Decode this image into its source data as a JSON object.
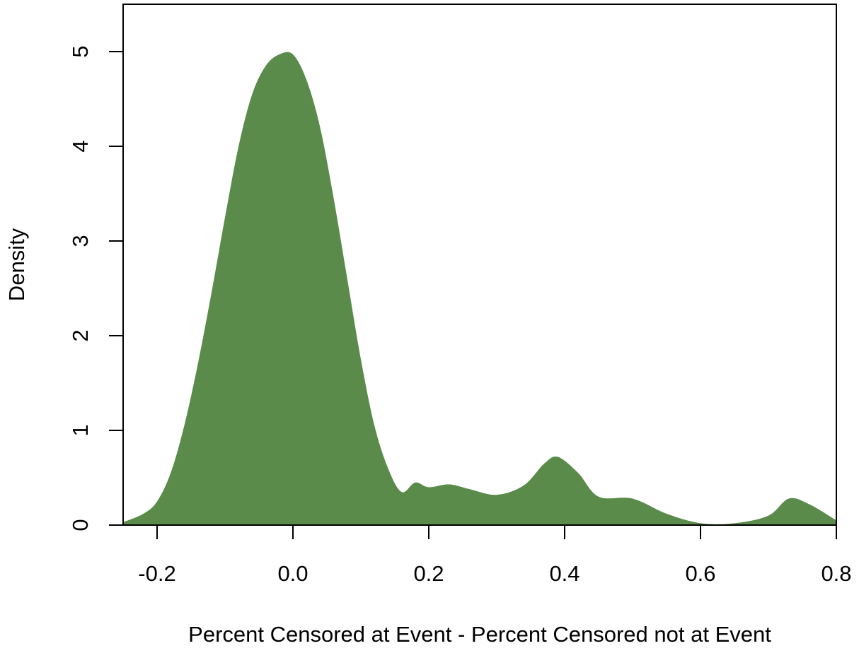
{
  "chart_data": {
    "type": "area",
    "title": "",
    "xlabel": "Percent Censored at Event - Percent Censored not at Event",
    "ylabel": "Density",
    "xlim": [
      -0.25,
      0.8
    ],
    "ylim": [
      0,
      5.5
    ],
    "x_ticks": [
      -0.2,
      0.0,
      0.2,
      0.4,
      0.6,
      0.8
    ],
    "x_tick_labels": [
      "-0.2",
      "0.0",
      "0.2",
      "0.4",
      "0.6",
      "0.8"
    ],
    "y_ticks": [
      0,
      1,
      2,
      3,
      4,
      5
    ],
    "y_tick_labels": [
      "0",
      "1",
      "2",
      "3",
      "4",
      "5"
    ],
    "grid": false,
    "fill_color": "#5a8b4a",
    "series": [
      {
        "x": [
          -0.25,
          -0.22,
          -0.2,
          -0.18,
          -0.16,
          -0.14,
          -0.12,
          -0.1,
          -0.08,
          -0.06,
          -0.04,
          -0.02,
          0.0,
          0.02,
          0.04,
          0.06,
          0.08,
          0.1,
          0.12,
          0.14,
          0.16,
          0.18,
          0.2,
          0.23,
          0.26,
          0.3,
          0.34,
          0.37,
          0.39,
          0.42,
          0.45,
          0.5,
          0.55,
          0.6,
          0.65,
          0.7,
          0.73,
          0.76,
          0.8
        ],
        "y": [
          0.03,
          0.12,
          0.25,
          0.55,
          1.05,
          1.7,
          2.45,
          3.25,
          4.0,
          4.55,
          4.85,
          4.97,
          4.97,
          4.7,
          4.2,
          3.45,
          2.6,
          1.75,
          1.05,
          0.6,
          0.35,
          0.45,
          0.4,
          0.43,
          0.38,
          0.32,
          0.42,
          0.65,
          0.72,
          0.55,
          0.3,
          0.28,
          0.12,
          0.02,
          0.02,
          0.1,
          0.28,
          0.22,
          0.05
        ]
      }
    ]
  }
}
